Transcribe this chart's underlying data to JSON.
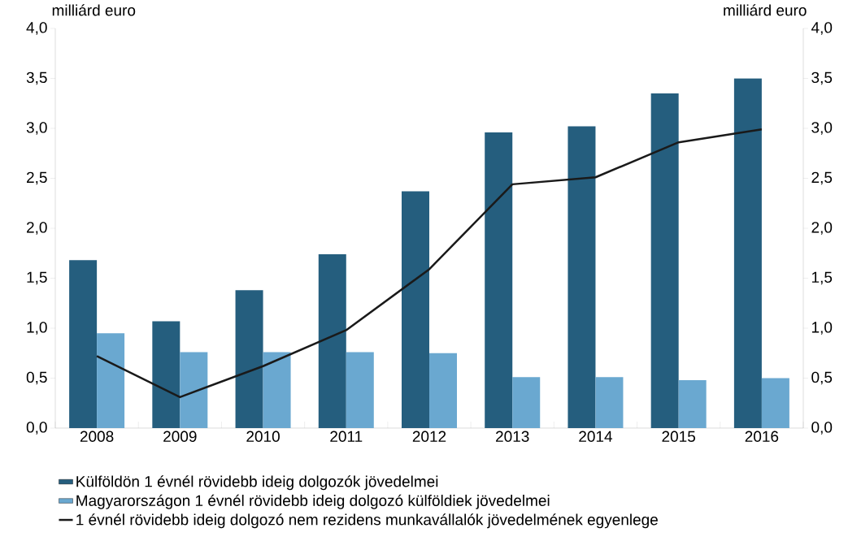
{
  "chart_data": {
    "type": "bar",
    "annotations": [
      "milliárd euro",
      "milliárd euro"
    ],
    "categories": [
      "2008",
      "2009",
      "2010",
      "2011",
      "2012",
      "2013",
      "2014",
      "2015",
      "2016"
    ],
    "series": [
      {
        "name": "Külföldön 1 évnél rövidebb ideig dolgozók jövedelmei",
        "color": "#255e7e",
        "values": [
          1.68,
          1.07,
          1.38,
          1.74,
          2.37,
          2.96,
          3.02,
          3.35,
          3.5
        ]
      },
      {
        "name": "Magyarországon 1 évnél rövidebb ideig dolgozó külföldiek jövedelmei",
        "color": "#6aa8d0",
        "values": [
          0.95,
          0.76,
          0.76,
          0.76,
          0.75,
          0.51,
          0.51,
          0.48,
          0.5
        ]
      },
      {
        "name": "1 évnél rövidebb ideig dolgozó nem rezidens munkavállalók jövedelmének egyenlege",
        "type": "line",
        "color": "#1a1a1a",
        "values": [
          0.72,
          0.31,
          0.62,
          0.98,
          1.59,
          2.44,
          2.51,
          2.86,
          2.99
        ]
      }
    ],
    "ylim": [
      0,
      4
    ],
    "yticks": [
      {
        "value": 0,
        "label": "0,0"
      },
      {
        "value": 0.5,
        "label": "0,5"
      },
      {
        "value": 1,
        "label": "1,0"
      },
      {
        "value": 1.5,
        "label": "1,5"
      },
      {
        "value": 2,
        "label": "2,0"
      },
      {
        "value": 2.5,
        "label": "2,5"
      },
      {
        "value": 3,
        "label": "3,0"
      },
      {
        "value": 3.5,
        "label": "3,5"
      },
      {
        "value": 4,
        "label": "4,0"
      }
    ],
    "y2lim": [
      0,
      4
    ],
    "y2ticks": [
      {
        "value": 0,
        "label": "0,0"
      },
      {
        "value": 0.5,
        "label": "0,5"
      },
      {
        "value": 1,
        "label": "1,0"
      },
      {
        "value": 1.5,
        "label": "1,5"
      },
      {
        "value": 2,
        "label": "2,0"
      },
      {
        "value": 2.5,
        "label": "2,5"
      },
      {
        "value": 3,
        "label": "3,0"
      },
      {
        "value": 3.5,
        "label": "3,5"
      },
      {
        "value": 4,
        "label": "4,0"
      }
    ],
    "legend": "bottom",
    "grid": false,
    "marker": "none"
  }
}
